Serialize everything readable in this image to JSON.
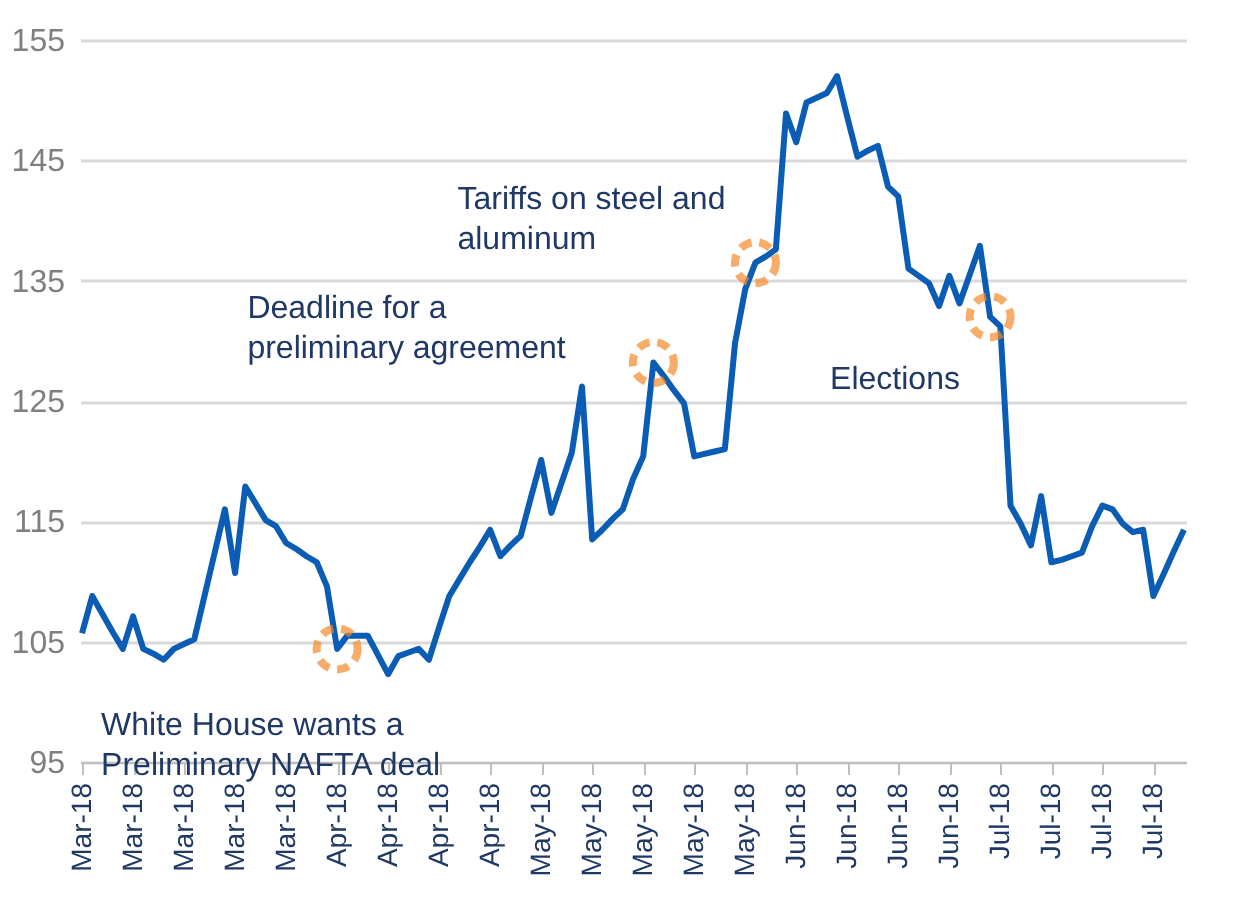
{
  "chart_data": {
    "type": "line",
    "color": "#0a5cb5",
    "grid": "y",
    "marker": "none",
    "line_style": "solid",
    "categories": [
      "Mar-18",
      null,
      null,
      null,
      null,
      "Mar-18",
      null,
      null,
      null,
      null,
      "Mar-18",
      null,
      null,
      null,
      null,
      "Mar-18",
      null,
      null,
      null,
      null,
      "Mar-18",
      null,
      null,
      null,
      null,
      "Apr-18",
      null,
      null,
      null,
      null,
      "Apr-18",
      null,
      null,
      null,
      null,
      "Apr-18",
      null,
      null,
      null,
      null,
      "Apr-18",
      null,
      null,
      null,
      null,
      "May-18",
      null,
      null,
      null,
      null,
      "May-18",
      null,
      null,
      null,
      null,
      "May-18",
      null,
      null,
      null,
      null,
      "May-18",
      null,
      null,
      null,
      null,
      "May-18",
      null,
      null,
      null,
      null,
      "Jun-18",
      null,
      null,
      null,
      null,
      "Jun-18",
      null,
      null,
      null,
      null,
      "Jun-18",
      null,
      null,
      null,
      null,
      "Jun-18",
      null,
      null,
      null,
      null,
      "Jul-18",
      null,
      null,
      null,
      null,
      "Jul-18",
      null,
      null,
      null,
      null,
      "Jul-18",
      null,
      null,
      null,
      null,
      "Jul-18",
      null,
      null,
      null
    ],
    "values": [
      105.7,
      108.8,
      107.3,
      105.8,
      104.4,
      107.1,
      104.4,
      104.0,
      103.5,
      104.4,
      104.8,
      105.2,
      108.8,
      112.4,
      116.0,
      110.7,
      117.9,
      116.5,
      115.1,
      114.6,
      113.2,
      112.7,
      112.1,
      111.6,
      109.6,
      104.4,
      105.5,
      105.5,
      105.5,
      103.9,
      102.3,
      103.8,
      104.1,
      104.4,
      103.5,
      106.2,
      108.8,
      110.2,
      111.6,
      112.9,
      114.3,
      112.1,
      113.0,
      113.8,
      117.0,
      120.1,
      115.7,
      118.2,
      120.7,
      126.2,
      113.5,
      114.3,
      115.2,
      116.0,
      118.5,
      120.4,
      128.2,
      127.1,
      125.9,
      124.8,
      120.4,
      120.6,
      120.8,
      121.0,
      129.8,
      134.3,
      136.5,
      137.0,
      137.6,
      148.9,
      146.5,
      149.8,
      150.2,
      150.6,
      152.0,
      148.6,
      145.3,
      145.8,
      146.2,
      142.8,
      142.0,
      136.0,
      135.4,
      134.8,
      132.9,
      135.4,
      133.1,
      135.5,
      137.9,
      132.0,
      131.2,
      116.3,
      114.8,
      113.0,
      117.1,
      111.6,
      111.8,
      112.1,
      112.4,
      114.6,
      116.3,
      116.0,
      114.8,
      114.1,
      114.3,
      108.8,
      110.6,
      112.5,
      114.3
    ],
    "ylim": [
      95,
      155
    ],
    "yticks": [
      95,
      105,
      115,
      125,
      135,
      145,
      155
    ],
    "annotations": [
      "White House wants a\nPreliminary NAFTA deal",
      "Deadline for a\npreliminary agreement",
      "Tariffs on steel and\naluminum",
      "Elections"
    ]
  }
}
